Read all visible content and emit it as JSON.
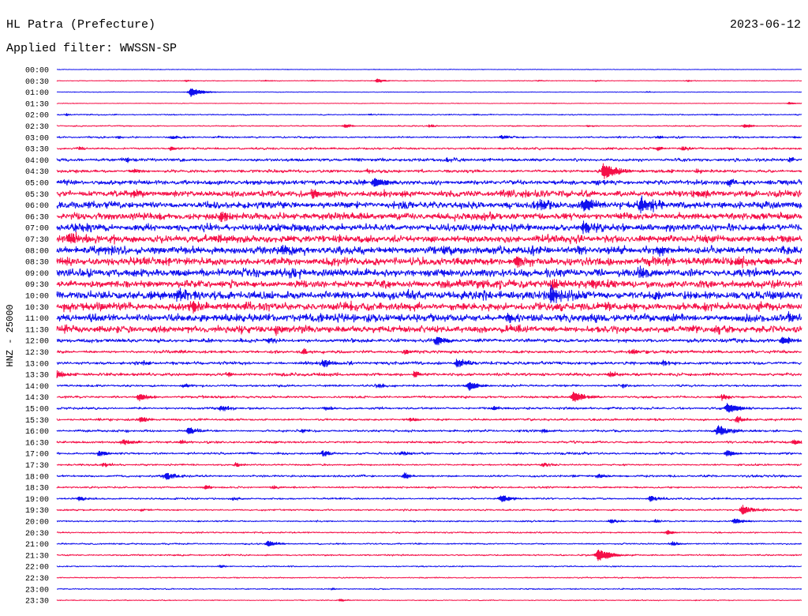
{
  "chart_data": {
    "type": "line",
    "title": "HL Patra (Prefecture)",
    "date": "2023-06-12",
    "subtitle": "Applied filter: WWSSN-SP",
    "ylabel": "HNZ - 25000",
    "xlim": [
      0,
      30
    ],
    "colors": [
      "#1010ee",
      "#f51048"
    ],
    "rows": [
      {
        "label": "00:00",
        "noise": 700,
        "events": []
      },
      {
        "label": "00:30",
        "noise": 900,
        "events": [
          [
            5.2,
            2600
          ],
          [
            8.4,
            2100
          ],
          [
            10.3,
            1800
          ],
          [
            12.9,
            5300
          ],
          [
            19.4,
            1800
          ],
          [
            21.7,
            1800
          ],
          [
            25.4,
            2600
          ]
        ]
      },
      {
        "label": "01:00",
        "noise": 700,
        "events": [
          [
            5.4,
            10500
          ],
          [
            23.8,
            1800
          ]
        ]
      },
      {
        "label": "01:30",
        "noise": 700,
        "events": [
          [
            20.0,
            1400
          ],
          [
            29.5,
            3500
          ]
        ]
      },
      {
        "label": "02:00",
        "noise": 1400,
        "events": [
          [
            0.4,
            2600
          ],
          [
            12.6,
            2100
          ],
          [
            16.8,
            2100
          ],
          [
            26.5,
            2100
          ]
        ]
      },
      {
        "label": "02:30",
        "noise": 1400,
        "events": [
          [
            11.6,
            5300
          ],
          [
            15.0,
            3500
          ],
          [
            21.4,
            2600
          ],
          [
            27.7,
            5300
          ]
        ]
      },
      {
        "label": "03:00",
        "noise": 2100,
        "events": [
          [
            2.5,
            3500
          ],
          [
            4.6,
            4400
          ],
          [
            6.5,
            2600
          ],
          [
            17.9,
            5300
          ],
          [
            24.2,
            3500
          ],
          [
            29.7,
            3500
          ]
        ]
      },
      {
        "label": "03:30",
        "noise": 2600,
        "events": [
          [
            0.9,
            4400
          ],
          [
            4.6,
            5300
          ],
          [
            24.2,
            5300
          ],
          [
            25.2,
            4400
          ]
        ]
      },
      {
        "label": "04:00",
        "noise": 3500,
        "events": [
          [
            2.8,
            5300
          ],
          [
            15.7,
            4400
          ],
          [
            29.5,
            4400
          ]
        ]
      },
      {
        "label": "04:30",
        "noise": 3500,
        "events": [
          [
            3.1,
            5300
          ],
          [
            12.5,
            4400
          ],
          [
            22.0,
            15800
          ],
          [
            25.8,
            5300
          ]
        ]
      },
      {
        "label": "05:00",
        "noise": 5300,
        "events": [
          [
            12.8,
            12300
          ],
          [
            27.1,
            7000
          ]
        ]
      },
      {
        "label": "05:30",
        "noise": 7000,
        "events": [
          [
            3.1,
            8800
          ],
          [
            10.3,
            8800
          ],
          [
            25.8,
            8800
          ]
        ]
      },
      {
        "label": "06:00",
        "noise": 7900,
        "events": [
          [
            19.4,
            8800
          ],
          [
            21.2,
            14000
          ],
          [
            23.5,
            15800
          ]
        ]
      },
      {
        "label": "06:30",
        "noise": 7900,
        "events": [
          [
            6.6,
            8800
          ]
        ]
      },
      {
        "label": "07:00",
        "noise": 7900,
        "events": [
          [
            21.2,
            12300
          ]
        ]
      },
      {
        "label": "07:30",
        "noise": 8800,
        "events": [
          [
            0.5,
            10500
          ]
        ]
      },
      {
        "label": "08:00",
        "noise": 8800,
        "events": [
          [
            9.1,
            10500
          ],
          [
            15.6,
            10500
          ],
          [
            24.2,
            10500
          ]
        ]
      },
      {
        "label": "08:30",
        "noise": 8800,
        "events": [
          [
            18.5,
            12300
          ],
          [
            27.4,
            9600
          ]
        ]
      },
      {
        "label": "09:00",
        "noise": 8800,
        "events": [
          [
            9.4,
            9600
          ],
          [
            23.5,
            10500
          ]
        ]
      },
      {
        "label": "09:30",
        "noise": 8800,
        "events": [
          [
            19.9,
            10500
          ],
          [
            21.6,
            10500
          ]
        ]
      },
      {
        "label": "10:00",
        "noise": 9600,
        "events": [
          [
            4.9,
            10500
          ],
          [
            19.9,
            17500
          ]
        ]
      },
      {
        "label": "10:30",
        "noise": 9600,
        "events": [
          [
            5.4,
            11400
          ]
        ]
      },
      {
        "label": "11:00",
        "noise": 8800,
        "events": [
          [
            18.1,
            9600
          ],
          [
            29.5,
            9600
          ]
        ]
      },
      {
        "label": "11:30",
        "noise": 7900,
        "events": [
          [
            8.8,
            8800
          ],
          [
            26.5,
            8800
          ]
        ]
      },
      {
        "label": "12:00",
        "noise": 4400,
        "events": [
          [
            8.5,
            6100
          ],
          [
            15.3,
            10500
          ],
          [
            29.2,
            8800
          ]
        ]
      },
      {
        "label": "12:30",
        "noise": 3500,
        "events": [
          [
            9.9,
            6100
          ],
          [
            14.0,
            6100
          ],
          [
            23.2,
            6100
          ]
        ]
      },
      {
        "label": "13:00",
        "noise": 3500,
        "events": [
          [
            3.5,
            5300
          ],
          [
            10.7,
            8800
          ],
          [
            16.1,
            10500
          ],
          [
            24.4,
            5300
          ]
        ]
      },
      {
        "label": "13:30",
        "noise": 3500,
        "events": [
          [
            0.0,
            8800
          ],
          [
            6.9,
            5300
          ],
          [
            14.4,
            7000
          ],
          [
            22.3,
            7000
          ]
        ]
      },
      {
        "label": "14:00",
        "noise": 2600,
        "events": [
          [
            5.1,
            5300
          ],
          [
            12.9,
            5300
          ],
          [
            16.6,
            10500
          ],
          [
            22.8,
            4400
          ]
        ]
      },
      {
        "label": "14:30",
        "noise": 2600,
        "events": [
          [
            3.3,
            8800
          ],
          [
            20.8,
            12300
          ],
          [
            26.8,
            7000
          ]
        ]
      },
      {
        "label": "15:00",
        "noise": 2600,
        "events": [
          [
            6.6,
            7000
          ],
          [
            10.8,
            5300
          ],
          [
            17.6,
            5300
          ],
          [
            27.0,
            12300
          ]
        ]
      },
      {
        "label": "15:30",
        "noise": 2600,
        "events": [
          [
            3.4,
            7000
          ],
          [
            14.2,
            5300
          ],
          [
            27.4,
            7000
          ]
        ]
      },
      {
        "label": "16:00",
        "noise": 2600,
        "events": [
          [
            5.3,
            8800
          ],
          [
            9.9,
            5300
          ],
          [
            19.6,
            5300
          ],
          [
            26.6,
            12300
          ]
        ]
      },
      {
        "label": "16:30",
        "noise": 2600,
        "events": [
          [
            2.7,
            7000
          ],
          [
            5.0,
            4400
          ],
          [
            29.7,
            7000
          ]
        ]
      },
      {
        "label": "17:00",
        "noise": 2600,
        "events": [
          [
            1.7,
            7000
          ],
          [
            10.7,
            7000
          ],
          [
            13.9,
            5300
          ],
          [
            27.0,
            7000
          ]
        ]
      },
      {
        "label": "17:30",
        "noise": 2100,
        "events": [
          [
            1.9,
            5300
          ],
          [
            7.2,
            5300
          ],
          [
            19.6,
            5300
          ]
        ]
      },
      {
        "label": "18:00",
        "noise": 2600,
        "events": [
          [
            4.4,
            8800
          ],
          [
            14.0,
            7000
          ],
          [
            21.8,
            5300
          ]
        ]
      },
      {
        "label": "18:30",
        "noise": 2100,
        "events": [
          [
            6.0,
            5300
          ],
          [
            8.7,
            4400
          ]
        ]
      },
      {
        "label": "19:00",
        "noise": 2100,
        "events": [
          [
            0.9,
            5300
          ],
          [
            7.1,
            4400
          ],
          [
            17.9,
            8800
          ],
          [
            23.9,
            7000
          ]
        ]
      },
      {
        "label": "19:30",
        "noise": 2100,
        "events": [
          [
            3.4,
            3500
          ],
          [
            27.6,
            10500
          ]
        ]
      },
      {
        "label": "20:00",
        "noise": 1800,
        "events": [
          [
            22.3,
            5300
          ],
          [
            24.1,
            4400
          ],
          [
            27.3,
            7000
          ]
        ]
      },
      {
        "label": "20:30",
        "noise": 1800,
        "events": [
          [
            24.6,
            5300
          ]
        ]
      },
      {
        "label": "21:00",
        "noise": 1800,
        "events": [
          [
            8.5,
            7000
          ],
          [
            24.8,
            5300
          ]
        ]
      },
      {
        "label": "21:30",
        "noise": 1800,
        "events": [
          [
            21.8,
            14000
          ]
        ]
      },
      {
        "label": "22:00",
        "noise": 1400,
        "events": [
          [
            6.6,
            3500
          ]
        ]
      },
      {
        "label": "22:30",
        "noise": 1400,
        "events": []
      },
      {
        "label": "23:00",
        "noise": 1400,
        "events": [
          [
            11.1,
            2600
          ]
        ]
      },
      {
        "label": "23:30",
        "noise": 1100,
        "events": [
          [
            11.4,
            3500
          ]
        ]
      }
    ]
  }
}
